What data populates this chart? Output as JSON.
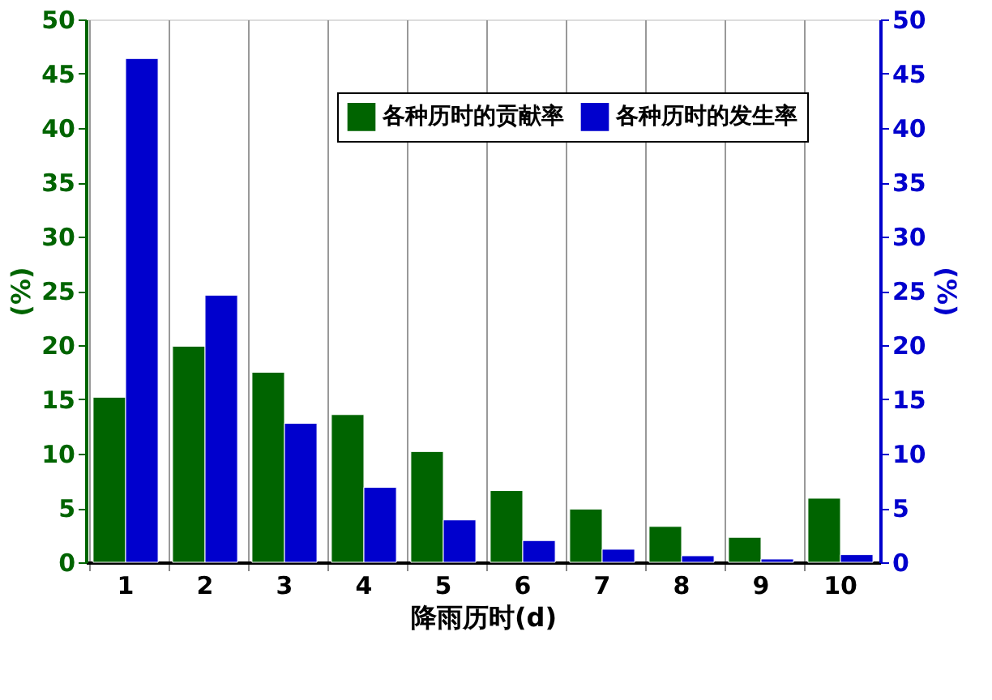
{
  "chart_data": {
    "type": "bar",
    "xlabel": "降雨历时(d)",
    "ylabel": "(%)",
    "y2label": "(%)",
    "categories": [
      "1",
      "2",
      "3",
      "4",
      "5",
      "6",
      "7",
      "8",
      "9",
      "10"
    ],
    "series": [
      {
        "name": "各种历时的贡献率",
        "color": "#006400",
        "values": [
          15.2,
          19.9,
          17.5,
          13.6,
          10.2,
          6.6,
          4.9,
          3.3,
          2.3,
          5.9
        ]
      },
      {
        "name": "各种历时的发生率",
        "color": "#0000cd",
        "axis": "y2",
        "values": [
          46.4,
          24.6,
          12.8,
          6.9,
          3.9,
          2.0,
          1.2,
          0.6,
          0.3,
          0.7
        ]
      }
    ],
    "ylim": [
      0,
      50
    ],
    "yticks": [
      0,
      5,
      10,
      15,
      20,
      25,
      30,
      35,
      40,
      45,
      50
    ],
    "y2lim": [
      0,
      50
    ],
    "y2ticks": [
      0,
      5,
      10,
      15,
      20,
      25,
      30,
      35,
      40,
      45,
      50
    ],
    "grid": "x",
    "legend": "top right"
  }
}
